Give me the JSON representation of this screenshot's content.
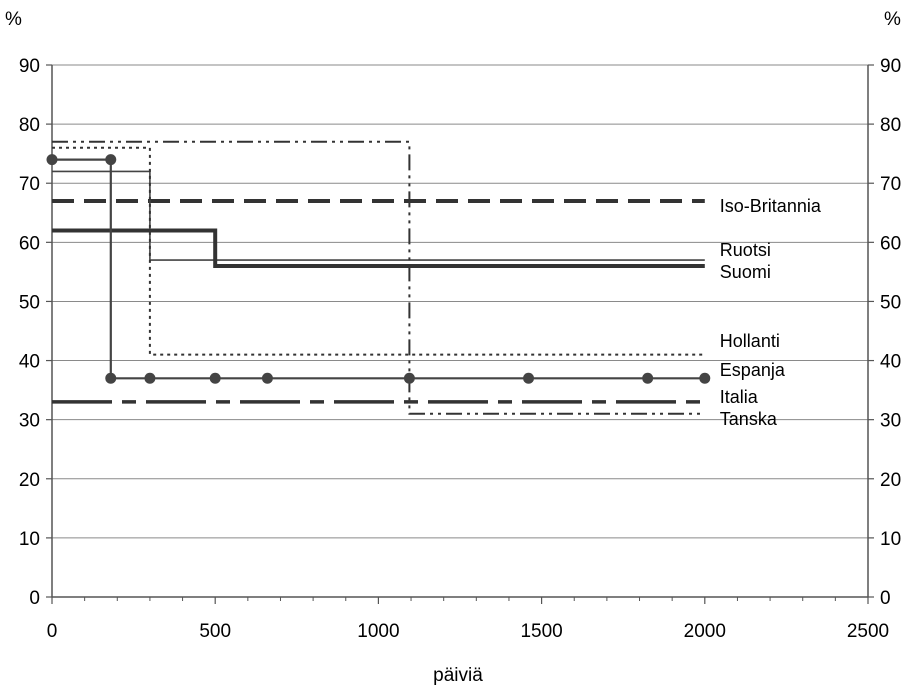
{
  "chart_data": {
    "type": "line",
    "title": "",
    "xlabel": "päiviä",
    "ylabel_left": "%",
    "ylabel_right": "%",
    "xlim": [
      0,
      2500
    ],
    "ylim": [
      0,
      90
    ],
    "xticks": [
      0,
      500,
      1000,
      1500,
      2000,
      2500
    ],
    "yticks": [
      0,
      10,
      20,
      30,
      40,
      50,
      60,
      70,
      80,
      90
    ],
    "grid": "horizontal",
    "legend": "inline labels at right end of series",
    "series": [
      {
        "name": "Iso-Britannia",
        "style": "dashed-heavy",
        "points": [
          [
            0,
            67
          ],
          [
            2000,
            67
          ]
        ]
      },
      {
        "name": "Ruotsi",
        "style": "solid-thin",
        "points": [
          [
            0,
            72
          ],
          [
            300,
            72
          ],
          [
            300,
            57
          ],
          [
            2000,
            57
          ]
        ]
      },
      {
        "name": "Suomi",
        "style": "solid-thick",
        "points": [
          [
            0,
            62
          ],
          [
            500,
            62
          ],
          [
            500,
            56
          ],
          [
            2000,
            56
          ]
        ]
      },
      {
        "name": "Hollanti",
        "style": "dotted",
        "points": [
          [
            0,
            76
          ],
          [
            300,
            76
          ],
          [
            300,
            41
          ],
          [
            2000,
            41
          ]
        ]
      },
      {
        "name": "Espanja",
        "style": "solid-markers",
        "points": [
          [
            0,
            74
          ],
          [
            180,
            74
          ],
          [
            180,
            37
          ],
          [
            2000,
            37
          ]
        ],
        "markers": [
          [
            0,
            74
          ],
          [
            180,
            74
          ],
          [
            180,
            37
          ],
          [
            300,
            37
          ],
          [
            500,
            37
          ],
          [
            660,
            37
          ],
          [
            1095,
            37
          ],
          [
            1460,
            37
          ],
          [
            1825,
            37
          ],
          [
            2000,
            37
          ]
        ]
      },
      {
        "name": "Italia",
        "style": "long-dash-dot",
        "points": [
          [
            0,
            33
          ],
          [
            2000,
            33
          ]
        ]
      },
      {
        "name": "Tanska",
        "style": "dash-dot-dot",
        "points": [
          [
            0,
            77
          ],
          [
            1095,
            77
          ],
          [
            1095,
            31
          ],
          [
            2000,
            31
          ]
        ]
      }
    ]
  }
}
